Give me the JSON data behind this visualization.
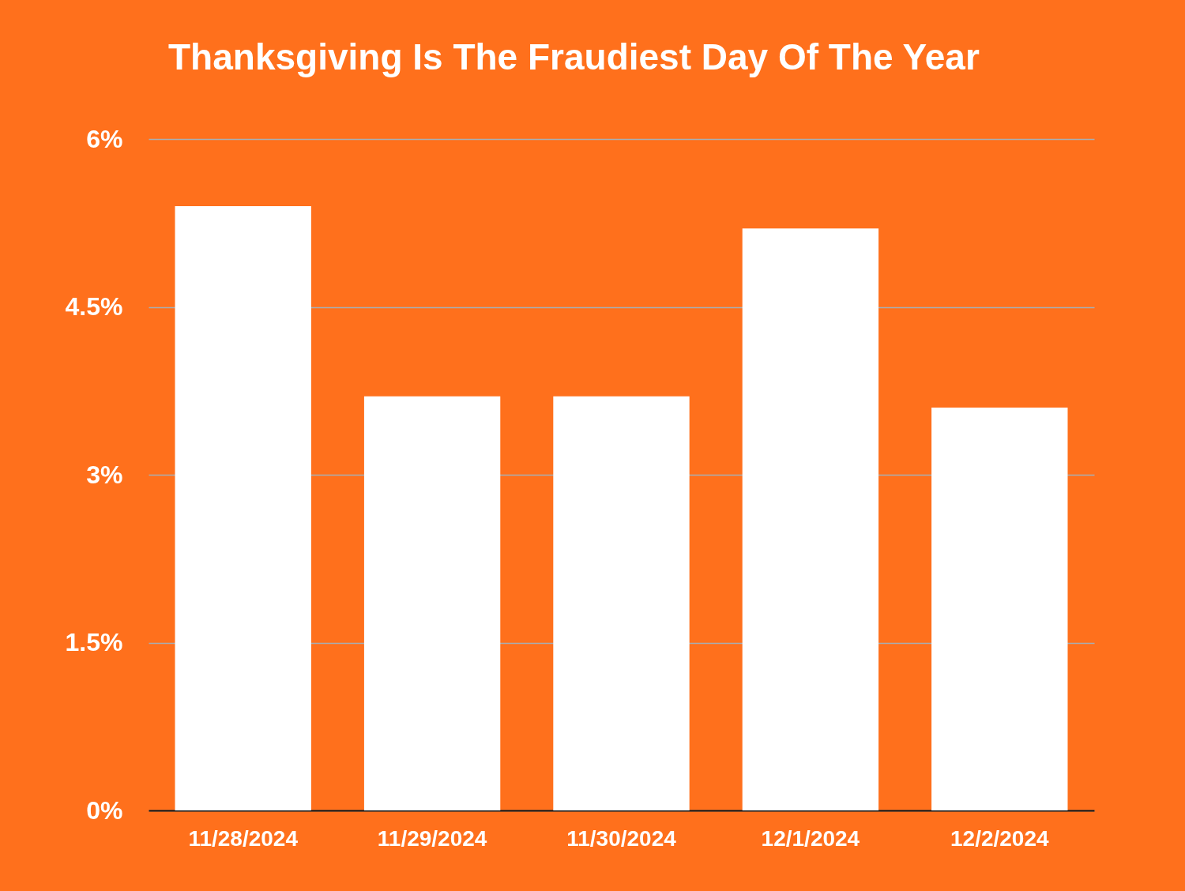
{
  "chart_data": {
    "type": "bar",
    "title": "Thanksgiving Is The Fraudiest Day Of The Year",
    "categories": [
      "11/28/2024",
      "11/29/2024",
      "11/30/2024",
      "12/1/2024",
      "12/2/2024"
    ],
    "values": [
      5.4,
      3.7,
      3.7,
      5.2,
      3.6
    ],
    "color": "#ffffff",
    "ylim": [
      0,
      6
    ],
    "yticks": [
      {
        "value": 0,
        "label": "0%"
      },
      {
        "value": 1.5,
        "label": "1.5%"
      },
      {
        "value": 3,
        "label": "3%"
      },
      {
        "value": 4.5,
        "label": "4.5%"
      },
      {
        "value": 6,
        "label": "6%"
      }
    ],
    "grid": "y"
  }
}
